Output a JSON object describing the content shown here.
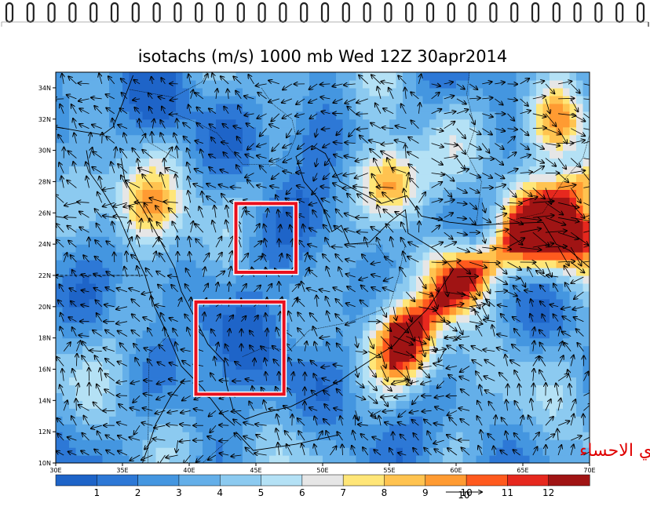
{
  "chart_data": {
    "type": "heatmap",
    "title": "isotachs (m/s) 1000 mb Wed 12Z 30apr2014",
    "x_ticks": [
      "30E",
      "35E",
      "40E",
      "45E",
      "50E",
      "55E",
      "60E",
      "65E",
      "70E"
    ],
    "y_ticks": [
      "10N",
      "12N",
      "14N",
      "16N",
      "18N",
      "20N",
      "22N",
      "24N",
      "26N",
      "28N",
      "30N",
      "32N",
      "34N"
    ],
    "x_range": [
      30,
      70
    ],
    "y_range": [
      10,
      35
    ],
    "colorbar_labels": [
      "1",
      "2",
      "3",
      "4",
      "5",
      "6",
      "7",
      "8",
      "9",
      "10",
      "11",
      "12"
    ],
    "colorbar_colors": [
      "#1e64c8",
      "#2d78d6",
      "#4496e0",
      "#64afe9",
      "#8ccaf0",
      "#b4e1f5",
      "#e6e6e6",
      "#ffe678",
      "#ffc350",
      "#ff9b32",
      "#ff5a1e",
      "#e6281e",
      "#a01414"
    ],
    "reference_vector_label": "10",
    "annotation_arabic": "براري الاحساء",
    "highlight_boxes": [
      {
        "lon": [
          43.5,
          48
        ],
        "lat": [
          22.2,
          26.6
        ]
      },
      {
        "lon": [
          40.5,
          47.1
        ],
        "lat": [
          14.4,
          20.3
        ]
      }
    ],
    "wind_speed_cores": [
      {
        "lon": 56,
        "lat": 17.5,
        "speed": 11
      },
      {
        "lon": 60,
        "lat": 22,
        "speed": 11
      },
      {
        "lon": 66,
        "lat": 25,
        "speed": 12
      },
      {
        "lon": 69,
        "lat": 24.5,
        "speed": 12
      },
      {
        "lon": 67.5,
        "lat": 32,
        "speed": 10
      },
      {
        "lon": 55,
        "lat": 28,
        "speed": 10
      },
      {
        "lon": 37,
        "lat": 26.5,
        "speed": 9
      }
    ],
    "dashed_reference_latitude": 22
  }
}
